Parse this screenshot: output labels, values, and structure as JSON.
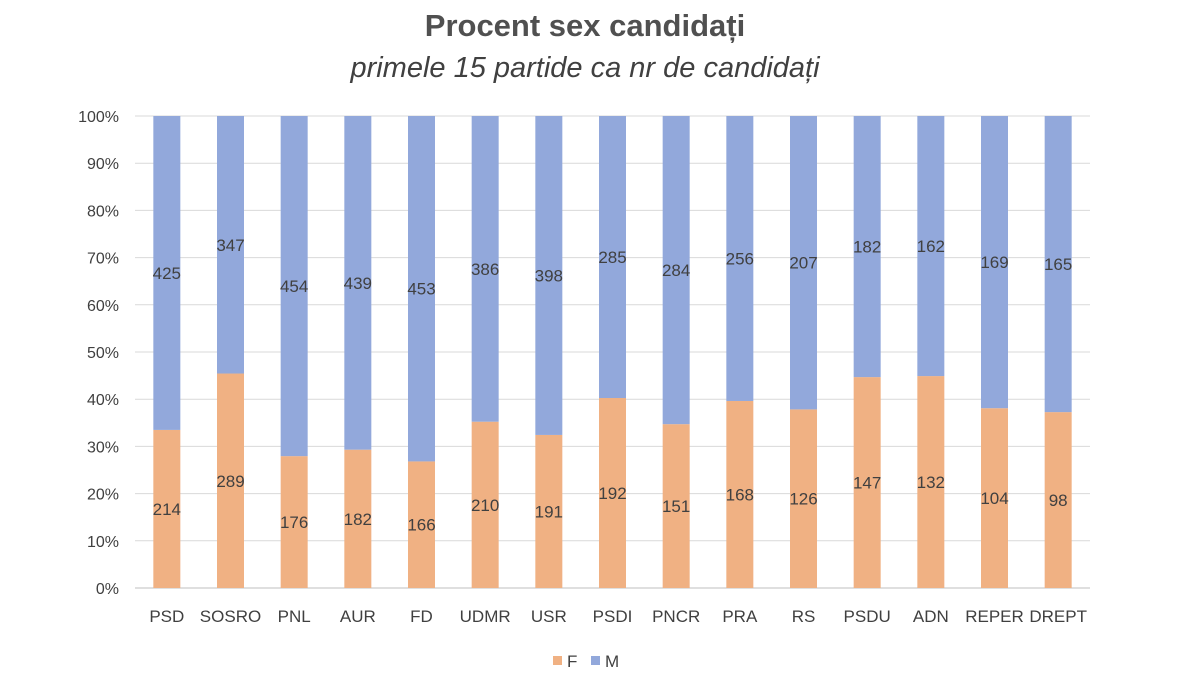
{
  "chart_data": {
    "type": "bar",
    "stacked": true,
    "normalized": true,
    "title": "Procent sex candidați",
    "subtitle": "primele 15 partide ca nr de candidați",
    "categories": [
      "PSD",
      "SOSRO",
      "PNL",
      "AUR",
      "FD",
      "UDMR",
      "USR",
      "PSDI",
      "PNCR",
      "PRA",
      "RS",
      "PSDU",
      "ADN",
      "REPER",
      "DREPT"
    ],
    "series": [
      {
        "name": "F",
        "color": "#F0B183",
        "values": [
          214,
          289,
          176,
          182,
          166,
          210,
          191,
          192,
          151,
          168,
          126,
          147,
          132,
          104,
          98
        ]
      },
      {
        "name": "M",
        "color": "#92A8DB",
        "values": [
          425,
          347,
          454,
          439,
          453,
          386,
          398,
          285,
          284,
          256,
          207,
          182,
          162,
          169,
          165
        ]
      }
    ],
    "yticks": [
      "0%",
      "10%",
      "20%",
      "30%",
      "40%",
      "50%",
      "60%",
      "70%",
      "80%",
      "90%",
      "100%"
    ],
    "ylim": [
      0,
      100
    ],
    "grid": true,
    "legend": "bottom"
  }
}
